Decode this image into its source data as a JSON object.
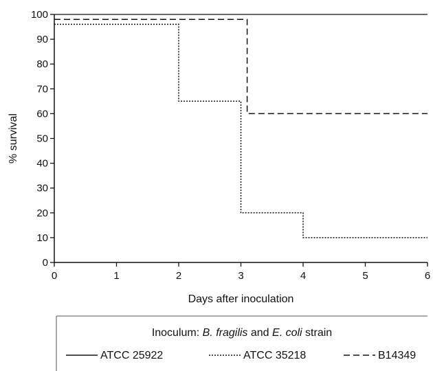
{
  "chart_data": {
    "type": "line",
    "step": true,
    "title": "",
    "xlabel": "Days after inoculation",
    "ylabel": "% survival",
    "xlim": [
      0,
      6
    ],
    "ylim": [
      0,
      100
    ],
    "x_ticks": [
      0,
      1,
      2,
      3,
      4,
      5,
      6
    ],
    "y_ticks": [
      0,
      10,
      20,
      30,
      40,
      50,
      60,
      70,
      80,
      90,
      100
    ],
    "grid": false,
    "legend_title_parts": [
      {
        "text": "Inoculum: ",
        "italic": false
      },
      {
        "text": "B. fragilis",
        "italic": true
      },
      {
        "text": " and ",
        "italic": false
      },
      {
        "text": "E. coli",
        "italic": true
      },
      {
        "text": " strain",
        "italic": false
      }
    ],
    "legend_placement": "bottom",
    "series": [
      {
        "name": "ATCC 25922",
        "line_style": "solid",
        "color": "#111111",
        "points": [
          [
            0,
            100
          ],
          [
            6,
            100
          ]
        ]
      },
      {
        "name": "ATCC 35218",
        "line_style": "dotted",
        "color": "#111111",
        "points": [
          [
            0,
            96
          ],
          [
            2,
            96
          ],
          [
            2,
            65
          ],
          [
            3,
            65
          ],
          [
            3,
            20
          ],
          [
            4,
            20
          ],
          [
            4,
            10
          ],
          [
            6,
            10
          ]
        ]
      },
      {
        "name": "B14349",
        "line_style": "dashed",
        "color": "#111111",
        "points": [
          [
            0,
            98
          ],
          [
            3.1,
            98
          ],
          [
            3.1,
            60
          ],
          [
            6,
            60
          ]
        ]
      }
    ]
  }
}
